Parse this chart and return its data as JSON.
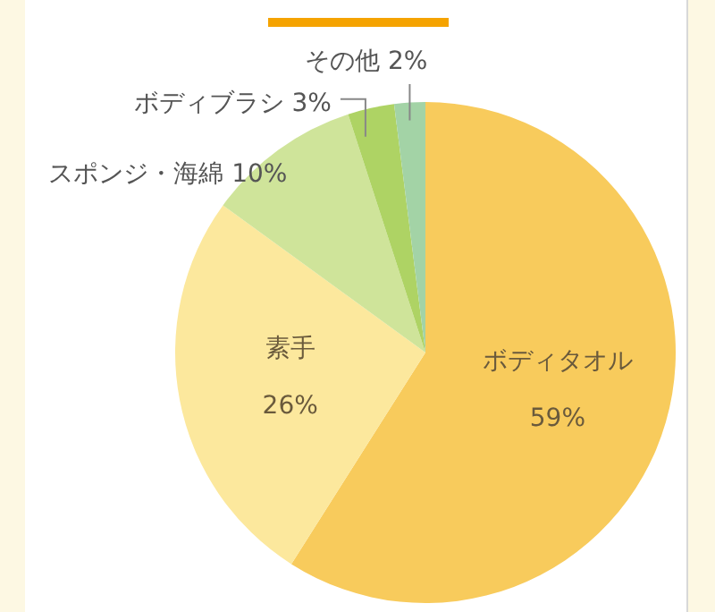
{
  "chart_data": {
    "type": "pie",
    "categories": [
      "ボディタオル",
      "素手",
      "スポンジ・海綿",
      "ボディブラシ",
      "その他"
    ],
    "values": [
      59,
      26,
      10,
      3,
      2
    ],
    "colors": [
      "#f8cb5c",
      "#fce89d",
      "#cfe49a",
      "#aed364",
      "#a3d3a6"
    ],
    "value_labels": [
      "59%",
      "26%",
      "10%",
      "3%",
      "2%"
    ],
    "legend": false
  }
}
